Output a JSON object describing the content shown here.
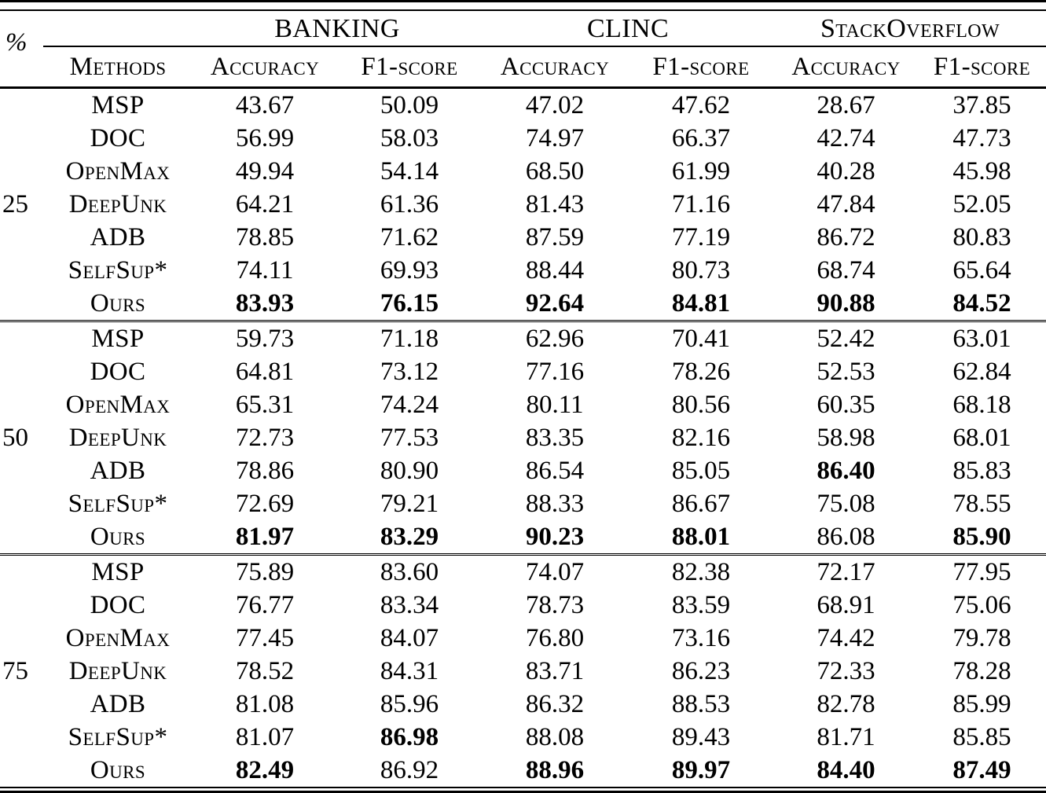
{
  "table": {
    "percent_header": "%",
    "methods_header": "Methods",
    "datasets": [
      "BANKING",
      "CLINC",
      "StackOverflow"
    ],
    "metric_headers": [
      "Accuracy",
      "F1-score",
      "Accuracy",
      "F1-score",
      "Accuracy",
      "F1-score"
    ],
    "groups": [
      {
        "percent": "25",
        "rows": [
          {
            "method": "MSP",
            "values": [
              "43.67",
              "50.09",
              "47.02",
              "47.62",
              "28.67",
              "37.85"
            ],
            "bold": [
              0,
              0,
              0,
              0,
              0,
              0
            ]
          },
          {
            "method": "DOC",
            "values": [
              "56.99",
              "58.03",
              "74.97",
              "66.37",
              "42.74",
              "47.73"
            ],
            "bold": [
              0,
              0,
              0,
              0,
              0,
              0
            ]
          },
          {
            "method": "OpenMax",
            "values": [
              "49.94",
              "54.14",
              "68.50",
              "61.99",
              "40.28",
              "45.98"
            ],
            "bold": [
              0,
              0,
              0,
              0,
              0,
              0
            ]
          },
          {
            "method": "DeepUnk",
            "values": [
              "64.21",
              "61.36",
              "81.43",
              "71.16",
              "47.84",
              "52.05"
            ],
            "bold": [
              0,
              0,
              0,
              0,
              0,
              0
            ]
          },
          {
            "method": "ADB",
            "values": [
              "78.85",
              "71.62",
              "87.59",
              "77.19",
              "86.72",
              "80.83"
            ],
            "bold": [
              0,
              0,
              0,
              0,
              0,
              0
            ]
          },
          {
            "method": "SelfSup*",
            "values": [
              "74.11",
              "69.93",
              "88.44",
              "80.73",
              "68.74",
              "65.64"
            ],
            "bold": [
              0,
              0,
              0,
              0,
              0,
              0
            ]
          },
          {
            "method": "Ours",
            "values": [
              "83.93",
              "76.15",
              "92.64",
              "84.81",
              "90.88",
              "84.52"
            ],
            "bold": [
              1,
              1,
              1,
              1,
              1,
              1
            ]
          }
        ]
      },
      {
        "percent": "50",
        "rows": [
          {
            "method": "MSP",
            "values": [
              "59.73",
              "71.18",
              "62.96",
              "70.41",
              "52.42",
              "63.01"
            ],
            "bold": [
              0,
              0,
              0,
              0,
              0,
              0
            ]
          },
          {
            "method": "DOC",
            "values": [
              "64.81",
              "73.12",
              "77.16",
              "78.26",
              "52.53",
              "62.84"
            ],
            "bold": [
              0,
              0,
              0,
              0,
              0,
              0
            ]
          },
          {
            "method": "OpenMax",
            "values": [
              "65.31",
              "74.24",
              "80.11",
              "80.56",
              "60.35",
              "68.18"
            ],
            "bold": [
              0,
              0,
              0,
              0,
              0,
              0
            ]
          },
          {
            "method": "DeepUnk",
            "values": [
              "72.73",
              "77.53",
              "83.35",
              "82.16",
              "58.98",
              "68.01"
            ],
            "bold": [
              0,
              0,
              0,
              0,
              0,
              0
            ]
          },
          {
            "method": "ADB",
            "values": [
              "78.86",
              "80.90",
              "86.54",
              "85.05",
              "86.40",
              "85.83"
            ],
            "bold": [
              0,
              0,
              0,
              0,
              1,
              0
            ]
          },
          {
            "method": "SelfSup*",
            "values": [
              "72.69",
              "79.21",
              "88.33",
              "86.67",
              "75.08",
              "78.55"
            ],
            "bold": [
              0,
              0,
              0,
              0,
              0,
              0
            ]
          },
          {
            "method": "Ours",
            "values": [
              "81.97",
              "83.29",
              "90.23",
              "88.01",
              "86.08",
              "85.90"
            ],
            "bold": [
              1,
              1,
              1,
              1,
              0,
              1
            ]
          }
        ]
      },
      {
        "percent": "75",
        "rows": [
          {
            "method": "MSP",
            "values": [
              "75.89",
              "83.60",
              "74.07",
              "82.38",
              "72.17",
              "77.95"
            ],
            "bold": [
              0,
              0,
              0,
              0,
              0,
              0
            ]
          },
          {
            "method": "DOC",
            "values": [
              "76.77",
              "83.34",
              "78.73",
              "83.59",
              "68.91",
              "75.06"
            ],
            "bold": [
              0,
              0,
              0,
              0,
              0,
              0
            ]
          },
          {
            "method": "OpenMax",
            "values": [
              "77.45",
              "84.07",
              "76.80",
              "73.16",
              "74.42",
              "79.78"
            ],
            "bold": [
              0,
              0,
              0,
              0,
              0,
              0
            ]
          },
          {
            "method": "DeepUnk",
            "values": [
              "78.52",
              "84.31",
              "83.71",
              "86.23",
              "72.33",
              "78.28"
            ],
            "bold": [
              0,
              0,
              0,
              0,
              0,
              0
            ]
          },
          {
            "method": "ADB",
            "values": [
              "81.08",
              "85.96",
              "86.32",
              "88.53",
              "82.78",
              "85.99"
            ],
            "bold": [
              0,
              0,
              0,
              0,
              0,
              0
            ]
          },
          {
            "method": "SelfSup*",
            "values": [
              "81.07",
              "86.98",
              "88.08",
              "89.43",
              "81.71",
              "85.85"
            ],
            "bold": [
              0,
              1,
              0,
              0,
              0,
              0
            ]
          },
          {
            "method": "Ours",
            "values": [
              "82.49",
              "86.92",
              "88.96",
              "89.97",
              "84.40",
              "87.49"
            ],
            "bold": [
              1,
              0,
              1,
              1,
              1,
              1
            ]
          }
        ]
      }
    ]
  }
}
